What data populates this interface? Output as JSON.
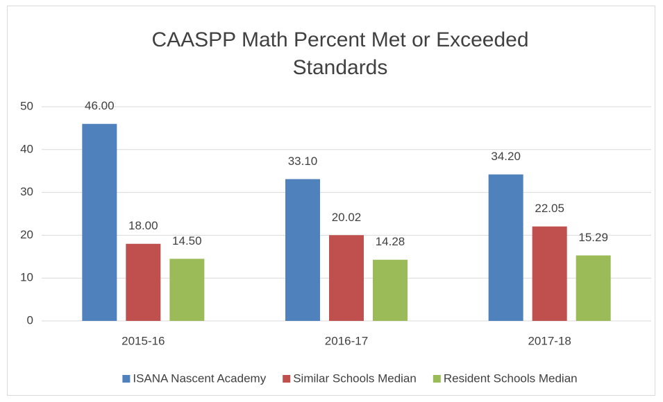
{
  "chart_data": {
    "type": "bar",
    "title": "CAASPP Math Percent Met or Exceeded Standards",
    "categories": [
      "2015-16",
      "2016-17",
      "2017-18"
    ],
    "series": [
      {
        "name": "ISANA Nascent Academy",
        "color": "#4f81bd",
        "values": [
          46,
          33.1,
          34.2
        ],
        "value_labels": [
          "46.00",
          "33.10",
          "34.20"
        ]
      },
      {
        "name": "Similar Schools Median",
        "color": "#c0504d",
        "values": [
          18,
          20.02,
          22.05
        ],
        "value_labels": [
          "18.00",
          "20.02",
          "22.05"
        ]
      },
      {
        "name": "Resident Schools Median",
        "color": "#9bbb59",
        "values": [
          14.5,
          14.28,
          15.29
        ],
        "value_labels": [
          "14.50",
          "14.28",
          "15.29"
        ]
      }
    ],
    "ylim": [
      0,
      50
    ],
    "yticks": [
      0,
      10,
      20,
      30,
      40,
      50
    ],
    "grid": true,
    "legend": "bottom"
  }
}
